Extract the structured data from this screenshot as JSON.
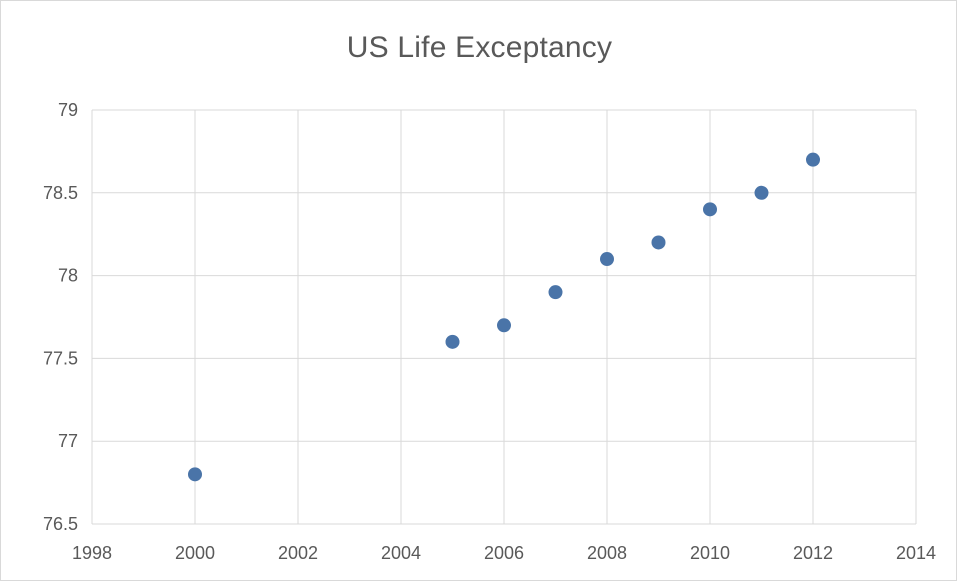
{
  "chart_data": {
    "type": "scatter",
    "title": "US Life Exceptancy",
    "xlabel": "",
    "ylabel": "",
    "xlim": [
      1998,
      2014
    ],
    "ylim": [
      76.5,
      79
    ],
    "x_ticks": [
      1998,
      2000,
      2002,
      2004,
      2006,
      2008,
      2010,
      2012,
      2014
    ],
    "y_ticks": [
      76.5,
      77,
      77.5,
      78,
      78.5,
      79
    ],
    "x_tick_labels": [
      "1998",
      "2000",
      "2002",
      "2004",
      "2006",
      "2008",
      "2010",
      "2012",
      "2014"
    ],
    "y_tick_labels": [
      "76.5",
      "77",
      "77.5",
      "78",
      "78.5",
      "79"
    ],
    "grid": true,
    "legend": "none",
    "marker_color": "#4a74a8",
    "grid_color": "#d9d9d9",
    "series": [
      {
        "x": [
          2000,
          2005,
          2006,
          2007,
          2008,
          2009,
          2010,
          2011,
          2012
        ],
        "y": [
          76.8,
          77.6,
          77.7,
          77.9,
          78.1,
          78.2,
          78.4,
          78.5,
          78.7
        ]
      }
    ]
  }
}
